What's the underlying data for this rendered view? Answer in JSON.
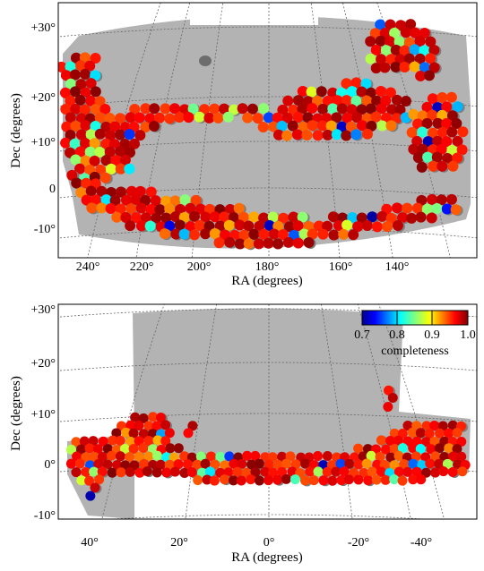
{
  "chart_data": [
    {
      "type": "scatter",
      "title": "",
      "xlabel": "RA (degrees)",
      "ylabel": "Dec (degrees)",
      "x_ticks": [
        "240°",
        "220°",
        "200°",
        "180°",
        "160°",
        "140°"
      ],
      "y_ticks": [
        "+30°",
        "+20°",
        "+10°",
        "0",
        "-10°"
      ],
      "xlim": [
        245,
        127
      ],
      "ylim": [
        -15,
        33
      ],
      "grid": true,
      "footprint_color": "#b3b3b3"
    },
    {
      "type": "scatter",
      "title": "",
      "xlabel": "RA (degrees)",
      "ylabel": "Dec (degrees)",
      "x_ticks": [
        "40°",
        "20°",
        "0°",
        "-20°",
        "-40°"
      ],
      "y_ticks": [
        "+30°",
        "+20°",
        "+10°",
        "0°",
        "-10°"
      ],
      "xlim": [
        47,
        -47
      ],
      "ylim": [
        -13,
        32
      ],
      "grid": true,
      "footprint_color": "#b3b3b3",
      "colorbar": {
        "label": "completeness",
        "ticks": [
          "0.7",
          "0.8",
          "0.9",
          "1.0"
        ],
        "range": [
          0.7,
          1.0
        ],
        "colormap": "jet",
        "placement": "top-right"
      }
    }
  ]
}
